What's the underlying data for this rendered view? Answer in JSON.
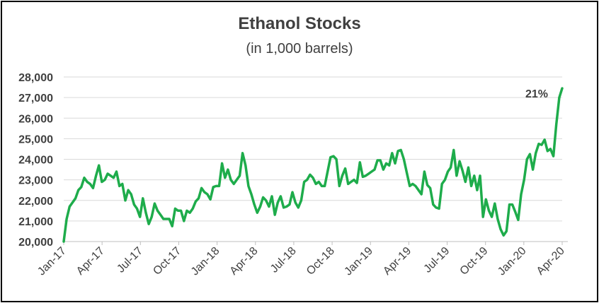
{
  "chart_data": {
    "type": "line",
    "title": "Ethanol Stocks",
    "subtitle": "(in 1,000 barrels)",
    "xlabel": "",
    "ylabel": "",
    "ylim": [
      20000,
      28000
    ],
    "yticks": [
      20000,
      21000,
      22000,
      23000,
      24000,
      25000,
      26000,
      27000,
      28000
    ],
    "ytick_labels": [
      "20,000",
      "21,000",
      "22,000",
      "23,000",
      "24,000",
      "25,000",
      "26,000",
      "27,000",
      "28,000"
    ],
    "xtick_labels": [
      "Jan-17",
      "Apr-17",
      "Jul-17",
      "Oct-17",
      "Jan-18",
      "Apr-18",
      "Jul-18",
      "Oct-18",
      "Jan-19",
      "Apr-19",
      "Jul-19",
      "Oct-19",
      "Jan-20",
      "Apr-20"
    ],
    "grid": true,
    "legend": "none",
    "line_color": "#1eac4b",
    "series": [
      {
        "values": [
          20000,
          21100,
          21700,
          21900,
          22100,
          22500,
          22650,
          23100,
          22900,
          22800,
          22600,
          23200,
          23700,
          22900,
          23000,
          23300,
          23200,
          23100,
          23400,
          22700,
          22800,
          22000,
          22500,
          22300,
          21800,
          21600,
          21200,
          22100,
          21400,
          20850,
          21200,
          21850,
          21500,
          21300,
          21100,
          21100,
          21100,
          20750,
          21600,
          21500,
          21500,
          21000,
          21500,
          21400,
          21600,
          21950,
          22100,
          22600,
          22400,
          22300,
          22050,
          22650,
          22700,
          22700,
          23800,
          23100,
          23500,
          23000,
          22800,
          23000,
          23200,
          24300,
          23700,
          22700,
          22300,
          21800,
          21400,
          21700,
          22150,
          22000,
          21700,
          22200,
          21300,
          21900,
          22200,
          21650,
          21700,
          21800,
          22400,
          21900,
          21650,
          22000,
          22900,
          23000,
          23250,
          23100,
          22800,
          22900,
          22700,
          22700,
          23400,
          24100,
          24150,
          24000,
          22700,
          23200,
          23550,
          22800,
          22900,
          23000,
          22850,
          23850,
          23150,
          23200,
          23300,
          23400,
          23500,
          23950,
          23950,
          23500,
          23800,
          23700,
          24300,
          23800,
          24400,
          24450,
          24000,
          23350,
          22700,
          22800,
          22700,
          22500,
          22300,
          23400,
          22750,
          22600,
          21800,
          21650,
          21600,
          22800,
          23000,
          23400,
          23600,
          24450,
          23200,
          23900,
          23450,
          22900,
          23600,
          22700,
          23200,
          22500,
          23200,
          21200,
          22050,
          21500,
          21200,
          21850,
          21100,
          20600,
          20300,
          20500,
          21800,
          21800,
          21450,
          21050,
          22300,
          23000,
          24000,
          24250,
          23500,
          24300,
          24750,
          24700,
          24950,
          24400,
          24500,
          24150,
          25700,
          27000,
          27450
        ]
      }
    ],
    "annotations": [
      {
        "text": "21%",
        "target": "last-point"
      }
    ]
  }
}
